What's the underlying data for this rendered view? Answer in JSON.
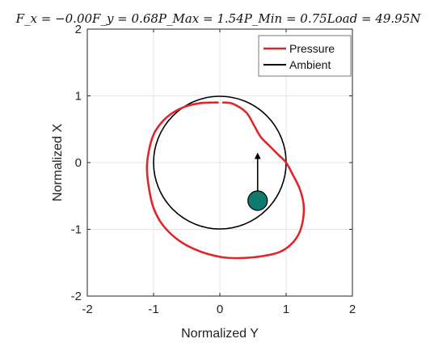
{
  "chart_data": {
    "type": "line",
    "title": "F_x = −0.00F_y = 0.68P_Max = 1.54P_Min = 0.75Load = 49.95N",
    "xlabel": "Normalized Y",
    "ylabel": "Normalized X",
    "xlim": [
      -2,
      2
    ],
    "ylim": [
      -2,
      2
    ],
    "xticks": [
      "-2",
      "-1",
      "0",
      "1",
      "2"
    ],
    "yticks": [
      "-2",
      "-1",
      "0",
      "1",
      "2"
    ],
    "grid": true,
    "legend_position": "top-right",
    "series": [
      {
        "name": "Pressure",
        "color": "#e0252b",
        "x": [
          0.05,
          0.2,
          0.4,
          0.52,
          0.62,
          0.75,
          0.88,
          1.0,
          1.1,
          1.2,
          1.26,
          1.26,
          1.2,
          1.08,
          0.9,
          0.65,
          0.35,
          0.05,
          -0.3,
          -0.6,
          -0.85,
          -1.0,
          -1.07,
          -1.1,
          -1.07,
          -1.0,
          -0.88,
          -0.72,
          -0.52,
          -0.3,
          -0.1,
          -0.03
        ],
        "y": [
          0.9,
          0.88,
          0.75,
          0.55,
          0.38,
          0.25,
          0.12,
          0.0,
          -0.18,
          -0.38,
          -0.6,
          -0.82,
          -1.05,
          -1.22,
          -1.34,
          -1.4,
          -1.43,
          -1.42,
          -1.33,
          -1.18,
          -0.95,
          -0.68,
          -0.38,
          -0.08,
          0.18,
          0.42,
          0.6,
          0.74,
          0.84,
          0.89,
          0.9,
          0.9
        ]
      },
      {
        "name": "Ambient",
        "color": "#000000",
        "shape": "unit-circle"
      }
    ],
    "markers": [
      {
        "name": "journal-center",
        "x": 0.57,
        "y": -0.57,
        "color": "#0e7a70"
      }
    ],
    "arrows": [
      {
        "name": "load-vector",
        "from": [
          0.57,
          -0.57
        ],
        "to": [
          0.57,
          0.15
        ]
      }
    ]
  }
}
